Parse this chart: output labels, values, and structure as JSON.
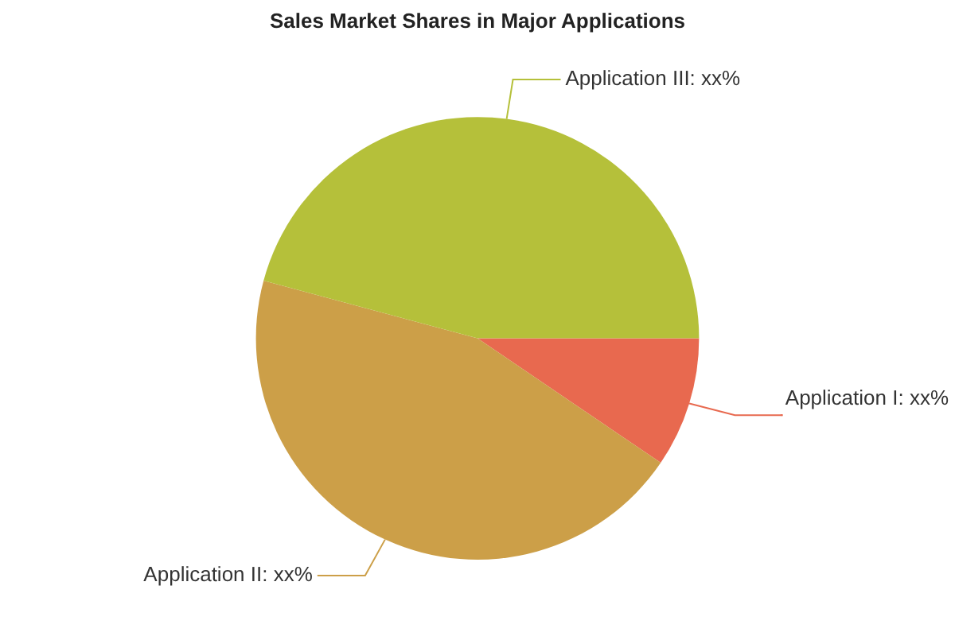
{
  "chart_data": {
    "type": "pie",
    "title": "Sales Market Shares in Major Applications",
    "categories": [
      "Application I",
      "Application II",
      "Application III"
    ],
    "values": [
      9.5,
      44.7,
      45.8
    ],
    "value_labels": [
      "xx%",
      "xx%",
      "xx%"
    ],
    "colors": [
      "#e8694f",
      "#cc9f48",
      "#b5c03a"
    ],
    "legend": false
  }
}
